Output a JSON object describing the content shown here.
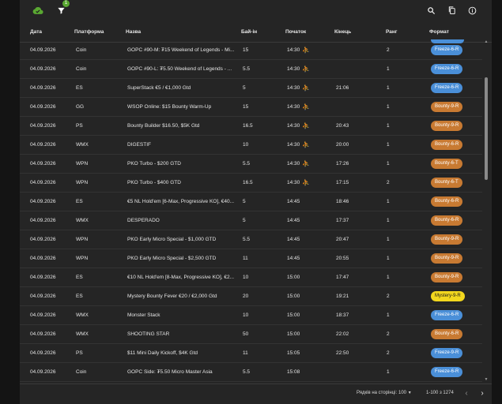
{
  "colors": {
    "freeze": "#4a8fd8",
    "bounty": "#c87a32",
    "mystery": "#f2d71e",
    "cloud": "#5aa832",
    "late_reg": "#e0a030"
  },
  "toolbar": {
    "cloud_icon": "cloud-done-icon",
    "filter_icon": "filter-icon",
    "filter_badge": "1",
    "search_icon": "search-icon",
    "copy_icon": "copy-icon",
    "info_icon": "info-icon"
  },
  "columns": {
    "date": "Дата",
    "platform": "Платформа",
    "name": "Назва",
    "buyin": "Бай-ін",
    "start": "Початок",
    "end": "Кінець",
    "rank": "Ранг",
    "format": "Формат"
  },
  "rows": [
    {
      "date": "04.09.2026",
      "platform": "Coin",
      "name": "GOPC #90-M: ₮15 Weekend of Legends - Mi...",
      "buyin": "15",
      "start": "14:30",
      "late": "⛹",
      "end": "",
      "rank": "2",
      "format": "Freeze-6-R",
      "kind": "freeze"
    },
    {
      "date": "04.09.2026",
      "platform": "Coin",
      "name": "GOPC #90-L: ₮5.50 Weekend of Legends - ...",
      "buyin": "5.5",
      "start": "14:30",
      "late": "⛹",
      "end": "",
      "rank": "1",
      "format": "Freeze-6-R",
      "kind": "freeze"
    },
    {
      "date": "04.09.2026",
      "platform": "ES",
      "name": "SuperStack €5 / €1,000 Gtd",
      "buyin": "5",
      "start": "14:30",
      "late": "⛹",
      "end": "21:06",
      "rank": "1",
      "format": "Freeze-6-R",
      "kind": "freeze"
    },
    {
      "date": "04.09.2026",
      "platform": "GG",
      "name": "WSOP Online: $15 Bounty Warm-Up",
      "buyin": "15",
      "start": "14:30",
      "late": "⛹",
      "end": "",
      "rank": "1",
      "format": "Bounty-9-R",
      "kind": "bounty"
    },
    {
      "date": "04.09.2026",
      "platform": "PS",
      "name": "Bounty Builder $16.50, $5K Gtd",
      "buyin": "16.5",
      "start": "14:30",
      "late": "⛹",
      "end": "20:43",
      "rank": "1",
      "format": "Bounty-9-R",
      "kind": "bounty"
    },
    {
      "date": "04.09.2026",
      "platform": "WMX",
      "name": "DIGESTIF",
      "buyin": "10",
      "start": "14:30",
      "late": "⛹",
      "end": "20:00",
      "rank": "1",
      "format": "Bounty-6-R",
      "kind": "bounty"
    },
    {
      "date": "04.09.2026",
      "platform": "WPN",
      "name": "PKO Turbo - $200 GTD",
      "buyin": "5.5",
      "start": "14:30",
      "late": "⛹",
      "end": "17:26",
      "rank": "1",
      "format": "Bounty-6-T",
      "kind": "bounty"
    },
    {
      "date": "04.09.2026",
      "platform": "WPN",
      "name": "PKO Turbo - $400 GTD",
      "buyin": "16.5",
      "start": "14:30",
      "late": "⛹",
      "end": "17:15",
      "rank": "2",
      "format": "Bounty-6-T",
      "kind": "bounty"
    },
    {
      "date": "04.09.2026",
      "platform": "ES",
      "name": "€5 NL Hold'em [6-Max, Progressive KO], €40...",
      "buyin": "5",
      "start": "14:45",
      "late": "",
      "end": "18:46",
      "rank": "1",
      "format": "Bounty-6-R",
      "kind": "bounty"
    },
    {
      "date": "04.09.2026",
      "platform": "WMX",
      "name": "DESPERADO",
      "buyin": "5",
      "start": "14:45",
      "late": "",
      "end": "17:37",
      "rank": "1",
      "format": "Bounty-6-R",
      "kind": "bounty"
    },
    {
      "date": "04.09.2026",
      "platform": "WPN",
      "name": "PKO Early Micro Special - $1,000 GTD",
      "buyin": "5.5",
      "start": "14:45",
      "late": "",
      "end": "20:47",
      "rank": "1",
      "format": "Bounty-9-R",
      "kind": "bounty"
    },
    {
      "date": "04.09.2026",
      "platform": "WPN",
      "name": "PKO Early Micro Special - $2,500 GTD",
      "buyin": "11",
      "start": "14:45",
      "late": "",
      "end": "20:55",
      "rank": "1",
      "format": "Bounty-9-R",
      "kind": "bounty"
    },
    {
      "date": "04.09.2026",
      "platform": "ES",
      "name": "€10 NL Hold'em [8-Max, Progressive KO], €2...",
      "buyin": "10",
      "start": "15:00",
      "late": "",
      "end": "17:47",
      "rank": "1",
      "format": "Bounty-9-R",
      "kind": "bounty"
    },
    {
      "date": "04.09.2026",
      "platform": "ES",
      "name": "Mystery Bounty Fever €20 / €2,000 Gtd",
      "buyin": "20",
      "start": "15:00",
      "late": "",
      "end": "19:21",
      "rank": "2",
      "format": "Mystery-9-R",
      "kind": "mystery"
    },
    {
      "date": "04.09.2026",
      "platform": "WMX",
      "name": "Monster Stack",
      "buyin": "10",
      "start": "15:00",
      "late": "",
      "end": "18:37",
      "rank": "1",
      "format": "Freeze-6-R",
      "kind": "freeze"
    },
    {
      "date": "04.09.2026",
      "platform": "WMX",
      "name": "SHOOTING STAR",
      "buyin": "50",
      "start": "15:00",
      "late": "",
      "end": "22:02",
      "rank": "2",
      "format": "Bounty-6-R",
      "kind": "bounty"
    },
    {
      "date": "04.09.2026",
      "platform": "PS",
      "name": "$11 Mini Daily Kickoff, $4K Gtd",
      "buyin": "11",
      "start": "15:05",
      "late": "",
      "end": "22:50",
      "rank": "2",
      "format": "Freeze-9-R",
      "kind": "freeze"
    },
    {
      "date": "04.09.2026",
      "platform": "Coin",
      "name": "GOPC Side: ₮5.50 Micro Master Asia",
      "buyin": "5.5",
      "start": "15:08",
      "late": "",
      "end": "",
      "rank": "1",
      "format": "Freeze-6-R",
      "kind": "freeze"
    }
  ],
  "footer": {
    "rows_per_page_label": "Рядків на сторінці:",
    "rows_per_page_value": "100",
    "range": "1-100 з 1274",
    "prev_icon": "chevron-left-icon",
    "next_icon": "chevron-right-icon"
  }
}
